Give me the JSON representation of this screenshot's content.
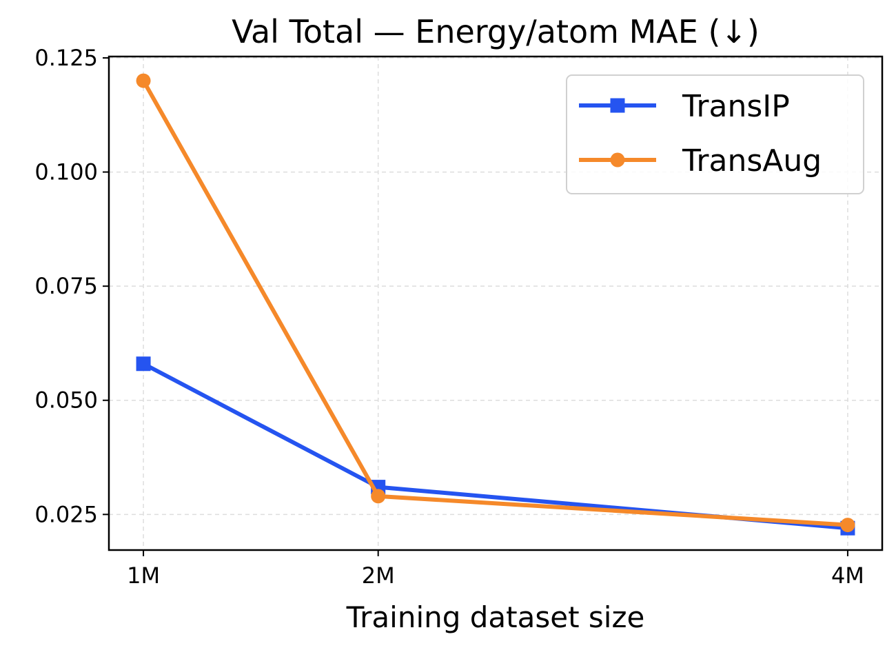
{
  "chart_data": {
    "type": "line",
    "title": "Val Total — Energy/atom MAE (↓)",
    "xlabel": "Training dataset size",
    "ylabel": "",
    "x": [
      1,
      2,
      4
    ],
    "x_tick_labels": [
      "1M",
      "2M",
      "4M"
    ],
    "xlim": [
      0.853,
      4.147
    ],
    "ylim": [
      0.0172,
      0.1253
    ],
    "y_ticks": [
      0.025,
      0.05,
      0.075,
      0.1,
      0.125
    ],
    "y_tick_labels": [
      "0.025",
      "0.050",
      "0.075",
      "0.100",
      "0.125"
    ],
    "grid": true,
    "legend_position": "top-right",
    "series": [
      {
        "name": "TransIP",
        "values": [
          0.058,
          0.031,
          0.022
        ],
        "color": "#2554f0",
        "marker": "square"
      },
      {
        "name": "TransAug",
        "values": [
          0.12,
          0.029,
          0.0227
        ],
        "color": "#f5892a",
        "marker": "circle"
      }
    ]
  }
}
